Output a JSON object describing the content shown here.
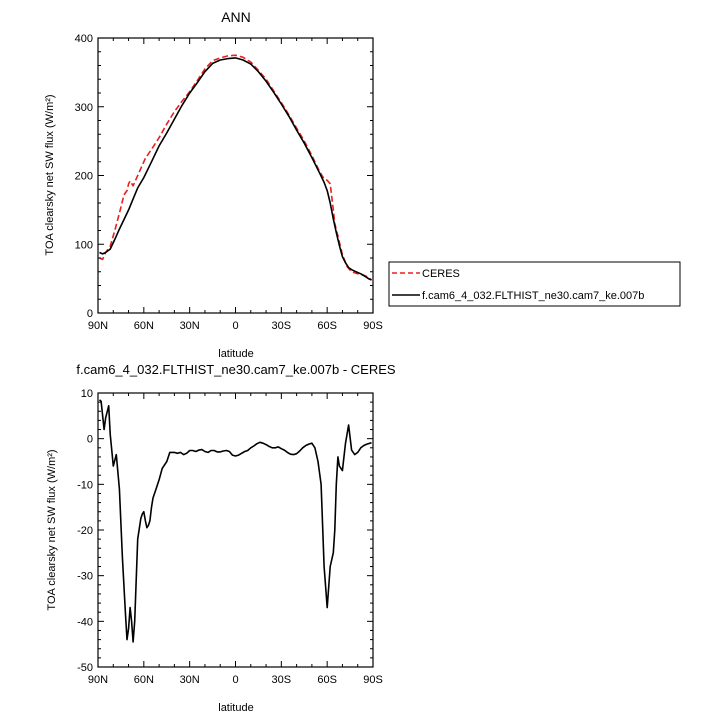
{
  "chart_data": [
    {
      "type": "line",
      "title": "ANN",
      "xlabel": "",
      "ylabel": "TOA clearsky net SW flux (W/m²)",
      "xlim": [
        90,
        -90
      ],
      "ylim": [
        0,
        400
      ],
      "x_ticks": [
        90,
        60,
        30,
        0,
        -30,
        -60,
        -90
      ],
      "x_tick_labels": [
        "90N",
        "60N",
        "30N",
        "0",
        "30S",
        "60S",
        "90S"
      ],
      "y_ticks": [
        0,
        100,
        200,
        300,
        400
      ],
      "y_tick_labels": [
        "0",
        "100",
        "200",
        "300",
        "400"
      ],
      "legend_position": "right",
      "series": [
        {
          "name": "CERES",
          "color": "#e8201f",
          "dash": "dashed",
          "x": [
            89,
            87,
            85,
            82,
            79,
            76,
            73,
            71,
            70,
            69,
            67,
            65,
            62,
            59,
            55,
            50,
            45,
            40,
            35,
            30,
            25,
            20,
            15,
            10,
            5,
            0,
            -5,
            -10,
            -15,
            -20,
            -25,
            -30,
            -35,
            -40,
            -45,
            -50,
            -55,
            -58,
            -60,
            -62,
            -64,
            -65,
            -67,
            -70,
            -73,
            -76,
            -80,
            -84,
            -87,
            -89
          ],
          "y": [
            80,
            78,
            88,
            97,
            120,
            145,
            172,
            178,
            188,
            192,
            185,
            195,
            210,
            225,
            238,
            255,
            275,
            293,
            308,
            322,
            338,
            355,
            367,
            371,
            374,
            375,
            372,
            365,
            353,
            340,
            323,
            306,
            288,
            269,
            250,
            229,
            206,
            195,
            193,
            188,
            150,
            130,
            112,
            85,
            68,
            60,
            57,
            55,
            52,
            48
          ]
        },
        {
          "name": "f.cam6_4_032.FLTHIST_ne30.cam7_ke.007b",
          "color": "#000000",
          "dash": "solid",
          "x": [
            89,
            87,
            85,
            82,
            79,
            76,
            73,
            70,
            67,
            64,
            60,
            55,
            50,
            45,
            40,
            35,
            30,
            25,
            20,
            15,
            10,
            5,
            0,
            -5,
            -10,
            -15,
            -20,
            -25,
            -30,
            -35,
            -40,
            -45,
            -50,
            -55,
            -58,
            -60,
            -62,
            -64,
            -66,
            -68,
            -70,
            -72,
            -74,
            -76,
            -79,
            -82,
            -85,
            -87,
            -89
          ],
          "y": [
            88,
            86,
            88,
            93,
            107,
            122,
            136,
            150,
            166,
            182,
            197,
            220,
            243,
            262,
            282,
            302,
            320,
            335,
            351,
            363,
            368,
            370,
            371,
            368,
            362,
            351,
            337,
            321,
            304,
            286,
            266,
            247,
            226,
            204,
            190,
            178,
            160,
            137,
            117,
            98,
            82,
            73,
            66,
            63,
            60,
            57,
            53,
            50,
            48
          ]
        }
      ]
    },
    {
      "type": "line",
      "title": "f.cam6_4_032.FLTHIST_ne30.cam7_ke.007b - CERES",
      "xlabel": "latitude",
      "ylabel": "TOA clearsky net SW flux (W/m²)",
      "xlim": [
        90,
        -90
      ],
      "ylim": [
        -50,
        10
      ],
      "x_ticks": [
        90,
        60,
        30,
        0,
        -30,
        -60,
        -90
      ],
      "x_tick_labels": [
        "90N",
        "60N",
        "30N",
        "0",
        "30S",
        "60S",
        "90S"
      ],
      "y_ticks": [
        -50,
        -40,
        -30,
        -20,
        -10,
        0,
        10
      ],
      "y_tick_labels": [
        "-50",
        "-40",
        "-30",
        "-20",
        "-10",
        "0",
        "10"
      ],
      "series": [
        {
          "name": "",
          "color": "#000000",
          "dash": "solid",
          "x": [
            89,
            88,
            86,
            85,
            83,
            82,
            80,
            78,
            76,
            74,
            72,
            71,
            70,
            69,
            68,
            67,
            66,
            64,
            62,
            61,
            60,
            59,
            58,
            57,
            56,
            55,
            54,
            52,
            50,
            48,
            45,
            43,
            40,
            38,
            36,
            34,
            32,
            30,
            28,
            26,
            24,
            22,
            20,
            18,
            16,
            14,
            12,
            10,
            8,
            6,
            4,
            2,
            0,
            -2,
            -4,
            -6,
            -8,
            -10,
            -12,
            -14,
            -16,
            -18,
            -20,
            -22,
            -24,
            -26,
            -28,
            -30,
            -32,
            -34,
            -36,
            -38,
            -40,
            -42,
            -44,
            -46,
            -48,
            -50,
            -52,
            -54,
            -56,
            -58,
            -60,
            -62,
            -64,
            -65,
            -66,
            -67,
            -68,
            -70,
            -72,
            -74,
            -76,
            -78,
            -80,
            -82,
            -84,
            -86,
            -88,
            -89
          ],
          "y": [
            8.5,
            8.2,
            2.0,
            4.5,
            7.2,
            1.0,
            -6.0,
            -3.5,
            -11.0,
            -26.0,
            -38.5,
            -44.0,
            -41.5,
            -37.0,
            -40.0,
            -44.5,
            -40.0,
            -22.0,
            -17.5,
            -16.5,
            -16.0,
            -18.0,
            -19.5,
            -19.0,
            -18.0,
            -15.0,
            -13.0,
            -11.0,
            -9.0,
            -6.5,
            -5.0,
            -3.0,
            -3.0,
            -3.2,
            -3.0,
            -3.5,
            -3.2,
            -2.6,
            -2.6,
            -2.8,
            -2.5,
            -2.4,
            -2.8,
            -3.0,
            -2.6,
            -2.6,
            -2.9,
            -2.9,
            -2.7,
            -2.6,
            -2.8,
            -3.6,
            -3.8,
            -3.6,
            -3.2,
            -2.8,
            -2.6,
            -2.0,
            -1.6,
            -1.1,
            -0.8,
            -1.0,
            -1.3,
            -1.7,
            -2.0,
            -2.0,
            -1.8,
            -2.2,
            -2.5,
            -3.0,
            -3.4,
            -3.5,
            -3.3,
            -2.7,
            -2.0,
            -1.5,
            -1.2,
            -1.0,
            -2.0,
            -5.0,
            -10.0,
            -28.0,
            -37.0,
            -28.0,
            -25.0,
            -20.0,
            -10.0,
            -4.0,
            -6.0,
            -7.0,
            -1.0,
            3.0,
            -2.5,
            -3.5,
            -3.0,
            -2.0,
            -1.5,
            -1.2,
            -1.0,
            -0.9
          ]
        }
      ]
    }
  ]
}
